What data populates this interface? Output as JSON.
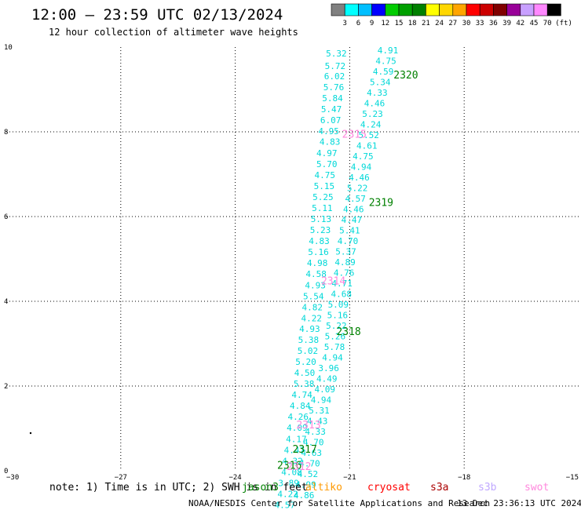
{
  "header": {
    "title": "12:00 – 23:59 UTC 02/13/2024",
    "subtitle": "12 hour collection of altimeter wave heights"
  },
  "colorbar": {
    "labels": [
      "3",
      "6",
      "9",
      "12",
      "15",
      "18",
      "21",
      "24",
      "27",
      "30",
      "33",
      "36",
      "39",
      "42",
      "45",
      "70"
    ],
    "unit": "(ft)",
    "colors": [
      "#808080",
      "#00ffff",
      "#00bfff",
      "#0000ff",
      "#00cc00",
      "#00a000",
      "#008000",
      "#ffff00",
      "#ffd700",
      "#ffa500",
      "#ff0000",
      "#cc0000",
      "#800000",
      "#990099",
      "#c8a0ff",
      "#ff88ff",
      "#000000"
    ]
  },
  "footer": {
    "note_prefix": "note:  1) Time is in UTC; 2) SWH is in feet",
    "missions": [
      {
        "name": "jason3",
        "color": "#008000"
      },
      {
        "name": "altiko",
        "color": "#ff9900"
      },
      {
        "name": "cryosat",
        "color": "#ff0000"
      },
      {
        "name": "s3a",
        "color": "#aa0000"
      },
      {
        "name": "s3b",
        "color": "#c0a8ff"
      },
      {
        "name": "swot",
        "color": "#ff88dd"
      }
    ],
    "credit": "NOAA/NESDIS Center for Satellite Applications and Research",
    "timestamp": "13 Dec 23:36:13 UTC 2024"
  },
  "chart_data": {
    "type": "scatter",
    "title": "12:00 – 23:59 UTC 02/13/2024",
    "subtitle": "12 hour collection of altimeter wave heights",
    "xlim": [
      -30,
      -15
    ],
    "ylim": [
      0,
      10
    ],
    "xticks": [
      "−30",
      "−27",
      "−24",
      "−21",
      "−18",
      "−15"
    ],
    "yticks": [
      "0",
      "2",
      "4",
      "6",
      "8",
      "10"
    ],
    "grid": true,
    "value_color": "#00d8d8",
    "pass_labels": [
      {
        "text": "2320",
        "x": -19.85,
        "y": 9.26,
        "color": "#008000"
      },
      {
        "text": "2315",
        "x": -21.2,
        "y": 7.86,
        "color": "#ff88dd"
      },
      {
        "text": "2319",
        "x": -20.5,
        "y": 6.25,
        "color": "#008000"
      },
      {
        "text": "2314",
        "x": -21.75,
        "y": 4.4,
        "color": "#ff88dd"
      },
      {
        "text": "2318",
        "x": -21.35,
        "y": 3.2,
        "color": "#008000"
      },
      {
        "text": "2313",
        "x": -22.4,
        "y": 1.0,
        "color": "#ff88dd"
      },
      {
        "text": "2317",
        "x": -22.5,
        "y": 0.43,
        "color": "#008000"
      },
      {
        "text": "2316",
        "x": -22.9,
        "y": 0.05,
        "color": "#008000"
      },
      {
        "text": "2312",
        "x": -22.65,
        "y": 0.02,
        "color": "#ff88dd"
      }
    ],
    "tracks": [
      {
        "name": "track-west",
        "points": [
          {
            "x": -21.35,
            "y": 9.78,
            "v": "5.32"
          },
          {
            "x": -21.38,
            "y": 9.48,
            "v": "5.72"
          },
          {
            "x": -21.4,
            "y": 9.24,
            "v": "6.02"
          },
          {
            "x": -21.42,
            "y": 8.98,
            "v": "5.76"
          },
          {
            "x": -21.45,
            "y": 8.72,
            "v": "5.84"
          },
          {
            "x": -21.48,
            "y": 8.46,
            "v": "5.47"
          },
          {
            "x": -21.5,
            "y": 8.2,
            "v": "6.07"
          },
          {
            "x": -21.55,
            "y": 7.94,
            "v": "4.95"
          },
          {
            "x": -21.52,
            "y": 7.69,
            "v": "4.83"
          },
          {
            "x": -21.6,
            "y": 7.43,
            "v": "4.97"
          },
          {
            "x": -21.6,
            "y": 7.17,
            "v": "5.70"
          },
          {
            "x": -21.65,
            "y": 6.91,
            "v": "4.75"
          },
          {
            "x": -21.67,
            "y": 6.65,
            "v": "5.15"
          },
          {
            "x": -21.7,
            "y": 6.39,
            "v": "5.25"
          },
          {
            "x": -21.72,
            "y": 6.13,
            "v": "5.11"
          },
          {
            "x": -21.75,
            "y": 5.87,
            "v": "5.13"
          },
          {
            "x": -21.77,
            "y": 5.61,
            "v": "5.23"
          },
          {
            "x": -21.8,
            "y": 5.35,
            "v": "4.83"
          },
          {
            "x": -21.82,
            "y": 5.09,
            "v": "5.16"
          },
          {
            "x": -21.85,
            "y": 4.83,
            "v": "4.98"
          },
          {
            "x": -21.88,
            "y": 4.57,
            "v": "4.58"
          },
          {
            "x": -21.9,
            "y": 4.31,
            "v": "4.93"
          },
          {
            "x": -21.95,
            "y": 4.05,
            "v": "5.54"
          },
          {
            "x": -21.98,
            "y": 3.79,
            "v": "4.82"
          },
          {
            "x": -22.0,
            "y": 3.53,
            "v": "4.22"
          },
          {
            "x": -22.05,
            "y": 3.28,
            "v": "4.93"
          },
          {
            "x": -22.08,
            "y": 3.02,
            "v": "5.38"
          },
          {
            "x": -22.1,
            "y": 2.76,
            "v": "5.02"
          },
          {
            "x": -22.15,
            "y": 2.5,
            "v": "5.20"
          },
          {
            "x": -22.18,
            "y": 2.24,
            "v": "4.50"
          },
          {
            "x": -22.2,
            "y": 1.98,
            "v": "5.38"
          },
          {
            "x": -22.25,
            "y": 1.72,
            "v": "4.74"
          },
          {
            "x": -22.3,
            "y": 1.46,
            "v": "4.84"
          },
          {
            "x": -22.35,
            "y": 1.2,
            "v": "4.26"
          },
          {
            "x": -22.38,
            "y": 0.94,
            "v": "4.09"
          },
          {
            "x": -22.4,
            "y": 0.68,
            "v": "4.17"
          },
          {
            "x": -22.45,
            "y": 0.42,
            "v": "4.47"
          },
          {
            "x": -22.5,
            "y": 0.16,
            "v": "4.32"
          },
          {
            "x": -22.52,
            "y": -0.1,
            "v": "4.08"
          },
          {
            "x": -22.6,
            "y": -0.36,
            "v": "3.89"
          },
          {
            "x": -22.62,
            "y": -0.62,
            "v": "4.22"
          },
          {
            "x": -22.7,
            "y": -0.88,
            "v": "4.57"
          }
        ]
      },
      {
        "name": "track-east",
        "points": [
          {
            "x": -20.0,
            "y": 9.85,
            "v": "4.91"
          },
          {
            "x": -20.05,
            "y": 9.6,
            "v": "4.75"
          },
          {
            "x": -20.12,
            "y": 9.35,
            "v": "4.59"
          },
          {
            "x": -20.2,
            "y": 9.1,
            "v": "5.34"
          },
          {
            "x": -20.28,
            "y": 8.85,
            "v": "4.33"
          },
          {
            "x": -20.35,
            "y": 8.6,
            "v": "4.46"
          },
          {
            "x": -20.4,
            "y": 8.35,
            "v": "5.23"
          },
          {
            "x": -20.45,
            "y": 8.1,
            "v": "4.24"
          },
          {
            "x": -20.5,
            "y": 7.85,
            "v": "5.52"
          },
          {
            "x": -20.55,
            "y": 7.6,
            "v": "4.61"
          },
          {
            "x": -20.65,
            "y": 7.35,
            "v": "4.75"
          },
          {
            "x": -20.7,
            "y": 7.1,
            "v": "4.94"
          },
          {
            "x": -20.75,
            "y": 6.85,
            "v": "4.46"
          },
          {
            "x": -20.8,
            "y": 6.6,
            "v": "5.22"
          },
          {
            "x": -20.85,
            "y": 6.35,
            "v": "4.57"
          },
          {
            "x": -20.9,
            "y": 6.1,
            "v": "4.46"
          },
          {
            "x": -20.95,
            "y": 5.85,
            "v": "4.47"
          },
          {
            "x": -21.0,
            "y": 5.6,
            "v": "5.41"
          },
          {
            "x": -21.05,
            "y": 5.35,
            "v": "4.70"
          },
          {
            "x": -21.1,
            "y": 5.1,
            "v": "5.37"
          },
          {
            "x": -21.12,
            "y": 4.85,
            "v": "4.89"
          },
          {
            "x": -21.15,
            "y": 4.6,
            "v": "4.76"
          },
          {
            "x": -21.2,
            "y": 4.35,
            "v": "4.71"
          },
          {
            "x": -21.22,
            "y": 4.1,
            "v": "4.68"
          },
          {
            "x": -21.3,
            "y": 3.85,
            "v": "5.09"
          },
          {
            "x": -21.32,
            "y": 3.6,
            "v": "5.16"
          },
          {
            "x": -21.35,
            "y": 3.35,
            "v": "5.22"
          },
          {
            "x": -21.38,
            "y": 3.1,
            "v": "5.26"
          },
          {
            "x": -21.4,
            "y": 2.85,
            "v": "5.78"
          },
          {
            "x": -21.45,
            "y": 2.6,
            "v": "4.94"
          },
          {
            "x": -21.55,
            "y": 2.35,
            "v": "3.96"
          },
          {
            "x": -21.6,
            "y": 2.1,
            "v": "4.49"
          },
          {
            "x": -21.65,
            "y": 1.85,
            "v": "4.09"
          },
          {
            "x": -21.75,
            "y": 1.6,
            "v": "4.94"
          },
          {
            "x": -21.8,
            "y": 1.35,
            "v": "5.31"
          },
          {
            "x": -21.85,
            "y": 1.1,
            "v": "4.43"
          },
          {
            "x": -21.9,
            "y": 0.85,
            "v": "4.33"
          },
          {
            "x": -21.95,
            "y": 0.6,
            "v": "4.70"
          },
          {
            "x": -22.0,
            "y": 0.35,
            "v": "4.63"
          },
          {
            "x": -22.05,
            "y": 0.1,
            "v": "4.70"
          },
          {
            "x": -22.1,
            "y": -0.15,
            "v": "4.52"
          },
          {
            "x": -22.15,
            "y": -0.4,
            "v": "4.99"
          },
          {
            "x": -22.2,
            "y": -0.65,
            "v": "4.86"
          }
        ]
      }
    ]
  }
}
